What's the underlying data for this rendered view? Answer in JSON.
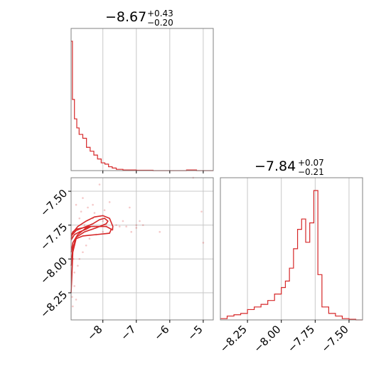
{
  "chart_data": {
    "type": "corner",
    "color": "#d62728",
    "params": [
      {
        "title_value": "−8.67",
        "title_plus": "+0.43",
        "title_minus": "−0.20",
        "range": [
          -8.95,
          -4.7
        ],
        "ticks": [
          {
            "value": -8,
            "label": "−8"
          },
          {
            "value": -7,
            "label": "−7"
          },
          {
            "value": -6,
            "label": "−6"
          },
          {
            "value": -5,
            "label": "−5"
          }
        ]
      },
      {
        "title_value": "−7.84",
        "title_plus": "+0.07",
        "title_minus": "−0.21",
        "range": [
          -8.45,
          -7.4
        ],
        "ticks": [
          {
            "value": -8.25,
            "label": "−8.25"
          },
          {
            "value": -8.0,
            "label": "−8.00"
          },
          {
            "value": -7.75,
            "label": "−7.75"
          },
          {
            "value": -7.5,
            "label": "−7.50"
          }
        ]
      }
    ],
    "hist1": {
      "x": [
        -8.95,
        -8.91,
        -8.85,
        -8.78,
        -8.71,
        -8.6,
        -8.49,
        -8.38,
        -8.27,
        -8.16,
        -8.05,
        -7.94,
        -7.83,
        -7.72,
        -7.6,
        -7.4,
        -7.0,
        -6.5,
        -5.5,
        -5.2,
        -5.0
      ],
      "y": [
        1.0,
        0.55,
        0.4,
        0.33,
        0.28,
        0.25,
        0.18,
        0.15,
        0.12,
        0.09,
        0.06,
        0.05,
        0.03,
        0.02,
        0.01,
        0.005,
        0.003,
        0.0,
        0.005,
        0.0,
        0.0
      ]
    },
    "hist2": {
      "x": [
        -8.45,
        -8.4,
        -8.35,
        -8.3,
        -8.25,
        -8.2,
        -8.15,
        -8.1,
        -8.05,
        -8.0,
        -7.97,
        -7.94,
        -7.91,
        -7.88,
        -7.85,
        -7.82,
        -7.79,
        -7.76,
        -7.73,
        -7.7,
        -7.65,
        -7.6,
        -7.55,
        -7.5,
        -7.45
      ],
      "y": [
        0.01,
        0.03,
        0.04,
        0.05,
        0.08,
        0.1,
        0.12,
        0.15,
        0.2,
        0.25,
        0.3,
        0.4,
        0.55,
        0.7,
        0.78,
        0.6,
        0.75,
        1.0,
        0.35,
        0.1,
        0.05,
        0.03,
        0.01,
        0.005,
        0.0
      ]
    },
    "joint": {
      "contours": [
        [
          [
            -8.95,
            -7.85
          ],
          [
            -8.9,
            -7.8
          ],
          [
            -8.8,
            -7.78
          ],
          [
            -8.6,
            -7.77
          ],
          [
            -8.4,
            -7.76
          ],
          [
            -8.2,
            -7.76
          ],
          [
            -7.9,
            -7.76
          ],
          [
            -7.75,
            -7.78
          ],
          [
            -7.8,
            -7.81
          ],
          [
            -8.2,
            -7.82
          ],
          [
            -8.6,
            -7.83
          ],
          [
            -8.8,
            -7.85
          ],
          [
            -8.9,
            -7.95
          ],
          [
            -8.93,
            -8.15
          ],
          [
            -8.95,
            -8.25
          ]
        ],
        [
          [
            -8.95,
            -7.83
          ],
          [
            -8.8,
            -7.79
          ],
          [
            -8.6,
            -7.77
          ],
          [
            -8.3,
            -7.74
          ],
          [
            -8.1,
            -7.71
          ],
          [
            -7.95,
            -7.7
          ],
          [
            -7.85,
            -7.72
          ],
          [
            -7.9,
            -7.74
          ],
          [
            -8.2,
            -7.77
          ],
          [
            -8.55,
            -7.8
          ],
          [
            -8.8,
            -7.84
          ],
          [
            -8.9,
            -7.92
          ],
          [
            -8.95,
            -8.05
          ]
        ],
        [
          [
            -8.95,
            -7.86
          ],
          [
            -8.85,
            -7.82
          ],
          [
            -8.7,
            -7.8
          ],
          [
            -8.5,
            -7.78
          ],
          [
            -8.35,
            -7.76
          ],
          [
            -8.5,
            -7.77
          ],
          [
            -8.75,
            -7.82
          ],
          [
            -8.9,
            -7.88
          ],
          [
            -8.95,
            -7.95
          ]
        ],
        [
          [
            -8.95,
            -7.82
          ],
          [
            -8.75,
            -7.76
          ],
          [
            -8.5,
            -7.72
          ],
          [
            -8.25,
            -7.69
          ],
          [
            -8.0,
            -7.68
          ],
          [
            -7.8,
            -7.7
          ],
          [
            -7.7,
            -7.76
          ],
          [
            -7.72,
            -7.79
          ]
        ]
      ],
      "points": [
        [
          -8.0,
          -7.72
        ],
        [
          -7.9,
          -7.76
        ],
        [
          -7.6,
          -7.75
        ],
        [
          -7.5,
          -7.76
        ],
        [
          -7.3,
          -7.76
        ],
        [
          -7.0,
          -7.77
        ],
        [
          -6.8,
          -7.75
        ],
        [
          -6.3,
          -7.8
        ],
        [
          -5.3,
          -7.4
        ],
        [
          -5.05,
          -7.65
        ],
        [
          -5.0,
          -7.88
        ],
        [
          -7.2,
          -7.62
        ],
        [
          -7.0,
          -7.75
        ],
        [
          -8.6,
          -7.55
        ],
        [
          -8.3,
          -7.6
        ],
        [
          -8.1,
          -7.45
        ],
        [
          -7.8,
          -7.58
        ],
        [
          -8.7,
          -7.7
        ],
        [
          -8.85,
          -8.2
        ],
        [
          -8.8,
          -8.3
        ],
        [
          -8.9,
          -8.35
        ],
        [
          -8.85,
          -8.1
        ],
        [
          -8.7,
          -8.0
        ],
        [
          -8.6,
          -7.95
        ],
        [
          -8.75,
          -8.05
        ],
        [
          -8.5,
          -7.9
        ],
        [
          -8.4,
          -7.85
        ],
        [
          -8.2,
          -7.82
        ],
        [
          -8.0,
          -7.8
        ],
        [
          -7.7,
          -7.78
        ],
        [
          -8.3,
          -7.7
        ],
        [
          -8.55,
          -7.75
        ],
        [
          -8.9,
          -7.9
        ],
        [
          -8.88,
          -8.0
        ],
        [
          -8.92,
          -8.28
        ],
        [
          -8.8,
          -7.6
        ],
        [
          -7.4,
          -7.72
        ],
        [
          -7.15,
          -7.8
        ],
        [
          -6.9,
          -7.72
        ],
        [
          -8.65,
          -7.65
        ],
        [
          -8.45,
          -7.62
        ],
        [
          -8.25,
          -7.66
        ],
        [
          -7.95,
          -7.64
        ]
      ]
    }
  }
}
